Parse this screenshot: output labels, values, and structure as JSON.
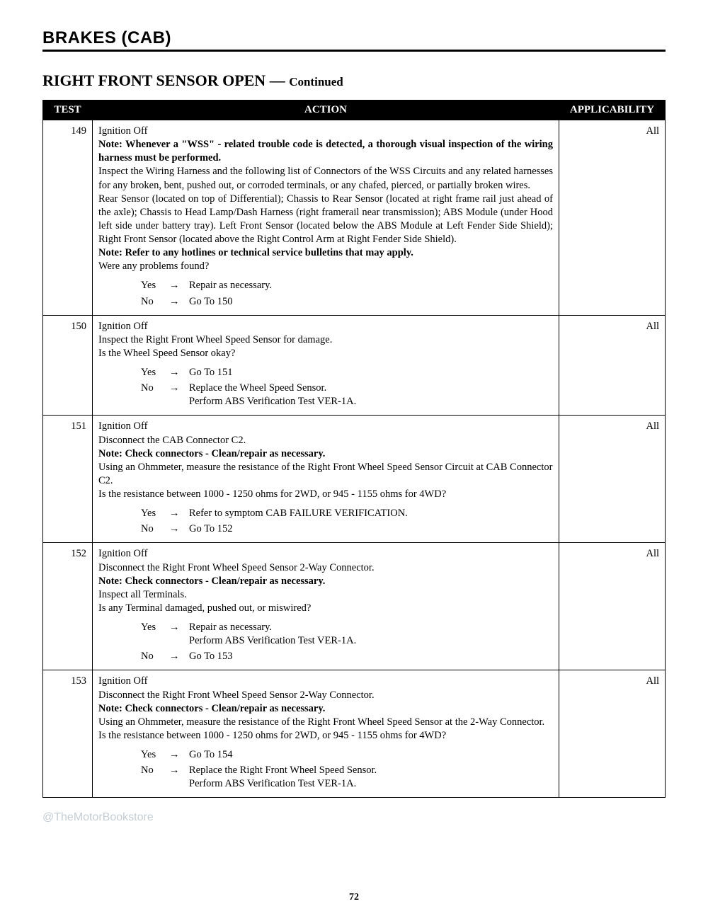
{
  "section": "BRAKES (CAB)",
  "subheader_main": "RIGHT FRONT SENSOR OPEN",
  "subheader_sep": " — ",
  "subheader_cont": "Continued",
  "columns": {
    "test": "TEST",
    "action": "ACTION",
    "applic": "APPLICABILITY"
  },
  "watermark": "@TheMotorBookstore",
  "page_number": "72",
  "rows": {
    "r149": {
      "num": "149",
      "applic": "All",
      "l1": "Ignition Off",
      "l2a": "Note: Whenever a \"WSS\" - related trouble code is detected, a thorough visual inspection of the wiring harness must be performed.",
      "l3": "Inspect the Wiring Harness and the following list of Connectors of the WSS Circuits and any related harnesses for any broken, bent, pushed out, or corroded terminals, or any chafed, pierced, or partially broken wires.",
      "l4": "Rear Sensor (located on top of Differential); Chassis to Rear Sensor (located at right frame rail just ahead of the axle); Chassis to Head Lamp/Dash Harness (right framerail near transmission); ABS Module (under Hood left side under battery tray). Left Front Sensor (located below the ABS Module at Left Fender Side Shield); Right Front Sensor (located above the Right Control Arm at Right Fender Side Shield).",
      "l5": "Note: Refer to any hotlines or technical service bulletins that may apply.",
      "l6": "Were any problems found?",
      "yes": "Repair as necessary.",
      "no": "Go To   150"
    },
    "r150": {
      "num": "150",
      "applic": "All",
      "l1": "Ignition Off",
      "l2": "Inspect the Right Front Wheel Speed Sensor for damage.",
      "l3": "Is the Wheel Speed Sensor okay?",
      "yes": "Go To   151",
      "no1": "Replace the Wheel Speed Sensor.",
      "no2": "Perform ABS Verification Test VER-1A."
    },
    "r151": {
      "num": "151",
      "applic": "All",
      "l1": "Ignition Off",
      "l2": "Disconnect the CAB Connector C2.",
      "l3": "Note: Check connectors - Clean/repair as necessary.",
      "l4": "Using an Ohmmeter, measure the resistance of the Right Front Wheel Speed Sensor Circuit at CAB Connector C2.",
      "l5": "Is the resistance between 1000 - 1250 ohms for 2WD, or 945 - 1155 ohms for 4WD?",
      "yes": "Refer to symptom CAB FAILURE VERIFICATION.",
      "no": "Go To   152"
    },
    "r152": {
      "num": "152",
      "applic": "All",
      "l1": "Ignition Off",
      "l2": "Disconnect the Right Front Wheel Speed Sensor 2-Way Connector.",
      "l3": "Note: Check connectors - Clean/repair as necessary.",
      "l4": "Inspect all Terminals.",
      "l5": "Is any Terminal damaged, pushed out, or miswired?",
      "yes1": "Repair as necessary.",
      "yes2": "Perform ABS Verification Test VER-1A.",
      "no": "Go To   153"
    },
    "r153": {
      "num": "153",
      "applic": "All",
      "l1": "Ignition Off",
      "l2": "Disconnect the Right Front Wheel Speed Sensor 2-Way Connector.",
      "l3": "Note: Check connectors - Clean/repair as necessary.",
      "l4": "Using an Ohmmeter, measure the resistance of the Right Front Wheel Speed Sensor at the 2-Way Connector.",
      "l5": "Is the resistance between 1000 - 1250 ohms for 2WD, or 945 - 1155 ohms for 4WD?",
      "yes": "Go To   154",
      "no1": "Replace the Right Front Wheel Speed Sensor.",
      "no2": "Perform ABS Verification Test VER-1A."
    }
  },
  "yn": {
    "yes": "Yes",
    "no": "No",
    "arrow": "→"
  }
}
